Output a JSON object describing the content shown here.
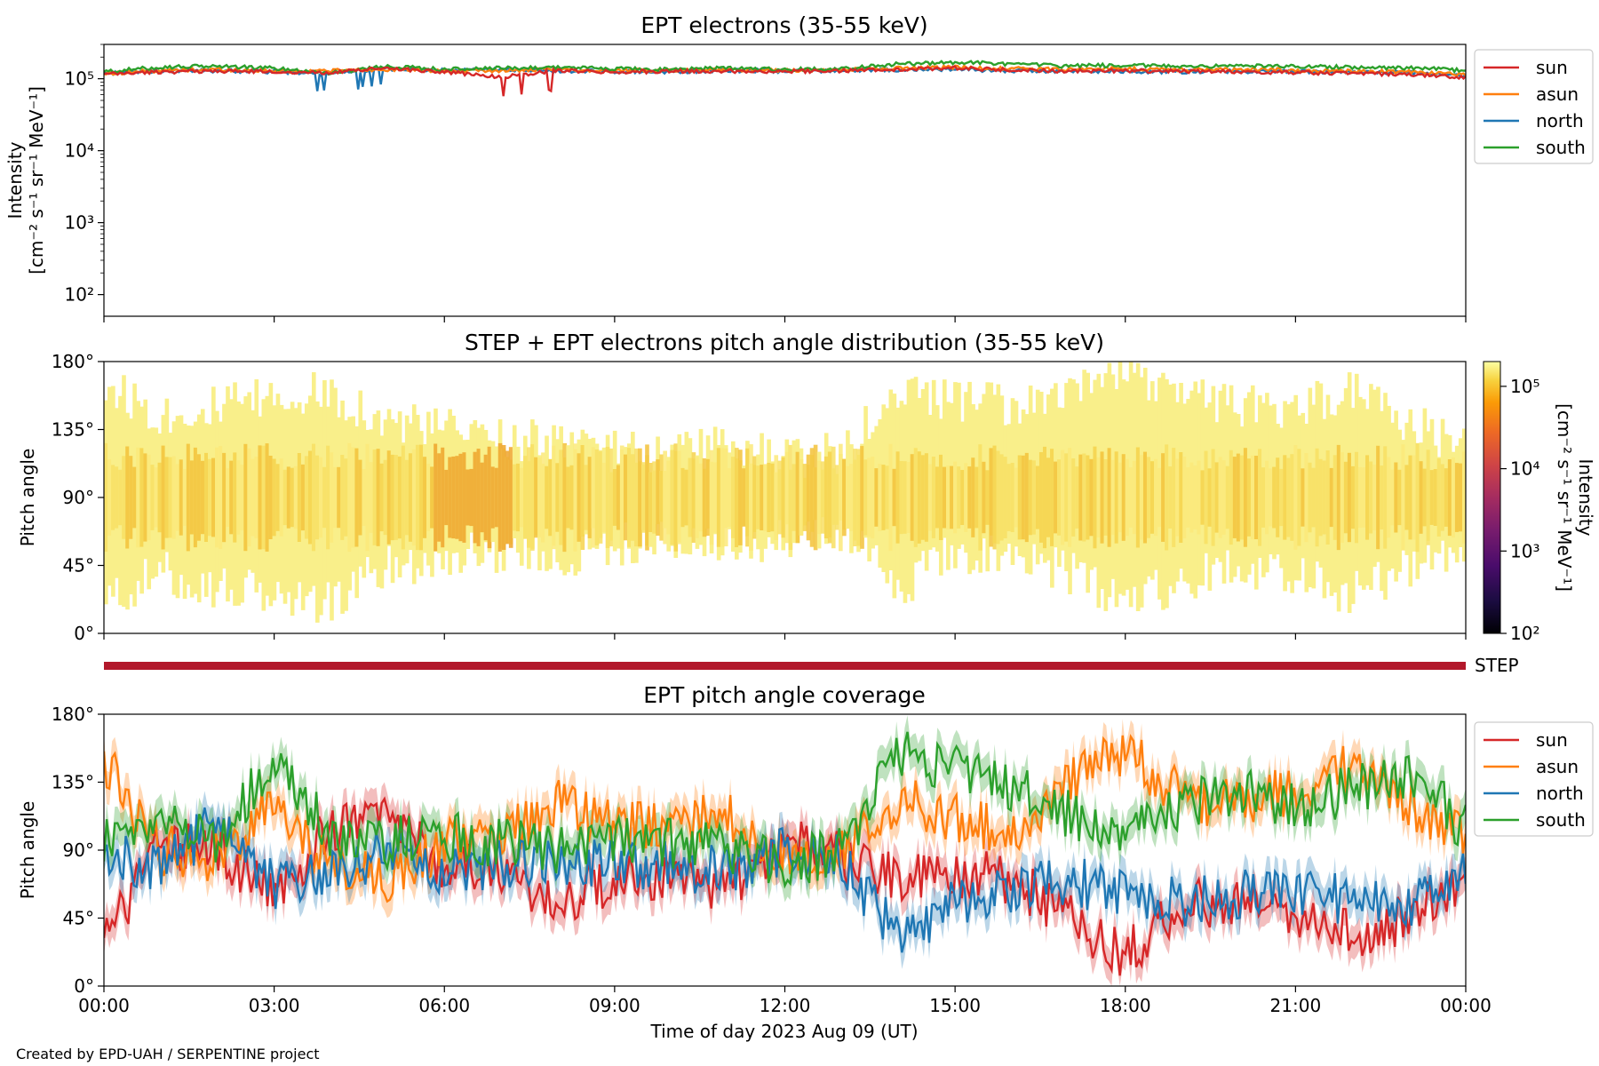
{
  "figure": {
    "credit": "Created by EPD-UAH / SERPENTINE project"
  },
  "colors": {
    "sun": "#d62728",
    "asun": "#ff7f0e",
    "north": "#1f77b4",
    "south": "#2ca02c",
    "step_bar": "#b2182b"
  },
  "chart_data": [
    {
      "type": "line",
      "title": "EPT electrons (35-55 keV)",
      "ylabel_line1": "Intensity",
      "ylabel_line2": "[cm⁻² s⁻¹ sr⁻¹ MeV⁻¹]",
      "yscale": "log",
      "ylim": [
        50,
        300000
      ],
      "yticks": [
        100,
        1000,
        10000,
        100000
      ],
      "ytick_labels": [
        "10²",
        "10³",
        "10⁴",
        "10⁵"
      ],
      "xlim": [
        "2023-08-09 00:00",
        "2023-08-10 00:00"
      ],
      "legend_placement": "outside-right-top",
      "series": [
        {
          "name": "sun",
          "x_hours": [
            0,
            1,
            2,
            3,
            4,
            5,
            6,
            7,
            8,
            9,
            10,
            11,
            12,
            13,
            14,
            15,
            16,
            17,
            18,
            19,
            20,
            21,
            22,
            23,
            24
          ],
          "values": [
            115000,
            125000,
            128000,
            125000,
            122000,
            140000,
            125000,
            105000,
            130000,
            125000,
            127000,
            128000,
            127000,
            130000,
            135000,
            140000,
            133000,
            128000,
            130000,
            128000,
            125000,
            122000,
            118000,
            115000,
            105000
          ]
        },
        {
          "name": "asun",
          "x_hours": [
            0,
            1,
            2,
            3,
            4,
            5,
            6,
            7,
            8,
            9,
            10,
            11,
            12,
            13,
            14,
            15,
            16,
            17,
            18,
            19,
            20,
            21,
            22,
            23,
            24
          ],
          "values": [
            118000,
            130000,
            135000,
            128000,
            130000,
            135000,
            128000,
            130000,
            133000,
            130000,
            132000,
            135000,
            130000,
            133000,
            140000,
            145000,
            138000,
            135000,
            138000,
            133000,
            135000,
            132000,
            128000,
            125000,
            115000
          ]
        },
        {
          "name": "north",
          "x_hours": [
            0,
            1,
            2,
            3,
            4,
            5,
            6,
            7,
            8,
            9,
            10,
            11,
            12,
            13,
            14,
            15,
            16,
            17,
            18,
            19,
            20,
            21,
            22,
            23,
            24
          ],
          "values": [
            120000,
            128000,
            130000,
            125000,
            115000,
            138000,
            130000,
            135000,
            128000,
            127000,
            125000,
            130000,
            128000,
            130000,
            132000,
            135000,
            130000,
            128000,
            127000,
            125000,
            127000,
            126000,
            124000,
            122000,
            112000
          ]
        },
        {
          "name": "south",
          "x_hours": [
            0,
            1,
            2,
            3,
            4,
            5,
            6,
            7,
            8,
            9,
            10,
            11,
            12,
            13,
            14,
            15,
            16,
            17,
            18,
            19,
            20,
            21,
            22,
            23,
            24
          ],
          "values": [
            125000,
            145000,
            150000,
            140000,
            120000,
            150000,
            135000,
            140000,
            145000,
            138000,
            135000,
            140000,
            135000,
            138000,
            160000,
            170000,
            160000,
            150000,
            155000,
            148000,
            150000,
            148000,
            145000,
            142000,
            130000
          ]
        }
      ]
    },
    {
      "type": "heatmap",
      "title": "STEP + EPT electrons pitch angle distribution (35-55 keV)",
      "ylabel": "Pitch angle",
      "ylim": [
        0,
        180
      ],
      "yticks": [
        0,
        45,
        90,
        135,
        180
      ],
      "ytick_labels": [
        "0°",
        "45°",
        "90°",
        "135°",
        "180°"
      ],
      "xlim": [
        "2023-08-09 00:00",
        "2023-08-10 00:00"
      ],
      "colorbar": {
        "scale": "log",
        "range": [
          100,
          200000
        ],
        "ticks": [
          100,
          1000,
          10000,
          100000
        ],
        "tick_labels": [
          "10²",
          "10³",
          "10⁴",
          "10⁵"
        ],
        "label_line1": "Intensity",
        "label_line2": "[cm⁻² s⁻¹ sr⁻¹ MeV⁻¹]",
        "colormap": "inferno"
      },
      "coverage_band": {
        "x_hours": [
          0,
          1,
          2,
          3,
          4,
          5,
          6,
          7,
          8,
          9,
          10,
          11,
          12,
          13,
          14,
          15,
          16,
          17,
          18,
          19,
          20,
          21,
          22,
          23,
          24
        ],
        "lower_deg": [
          20,
          40,
          30,
          25,
          20,
          45,
          50,
          55,
          50,
          60,
          60,
          55,
          65,
          70,
          30,
          55,
          50,
          40,
          20,
          35,
          45,
          40,
          25,
          45,
          60
        ],
        "upper_deg": [
          165,
          145,
          150,
          155,
          160,
          140,
          135,
          130,
          125,
          120,
          120,
          125,
          115,
          120,
          160,
          155,
          150,
          155,
          175,
          160,
          150,
          150,
          160,
          140,
          120
        ]
      },
      "intensity_note_levels": [
        80000,
        100000,
        120000,
        150000
      ]
    },
    {
      "type": "line",
      "title": "",
      "bar_label": "STEP",
      "ylabel": "",
      "ylim": [
        0,
        1
      ]
    },
    {
      "type": "line",
      "title": "EPT pitch angle coverage",
      "ylabel": "Pitch angle",
      "xlabel": "Time of day 2023 Aug 09 (UT)",
      "ylim": [
        0,
        180
      ],
      "yticks": [
        0,
        45,
        90,
        135,
        180
      ],
      "ytick_labels": [
        "0°",
        "45°",
        "90°",
        "135°",
        "180°"
      ],
      "xticks_hours": [
        0,
        3,
        6,
        9,
        12,
        15,
        18,
        21,
        24
      ],
      "xtick_labels": [
        "00:00",
        "03:00",
        "06:00",
        "09:00",
        "12:00",
        "15:00",
        "18:00",
        "21:00",
        "00:00"
      ],
      "xlim": [
        "2023-08-09 00:00",
        "2023-08-10 00:00"
      ],
      "legend_placement": "outside-right-top",
      "band_halfwidth_deg": 11,
      "series": [
        {
          "name": "sun",
          "x_hours": [
            0,
            1,
            2,
            3,
            4,
            5,
            6,
            7,
            8,
            9,
            10,
            11,
            12,
            13,
            14,
            15,
            16,
            17,
            18,
            19,
            20,
            21,
            22,
            23,
            24
          ],
          "values": [
            30,
            95,
            90,
            60,
            105,
            110,
            80,
            75,
            55,
            70,
            75,
            65,
            95,
            85,
            70,
            75,
            70,
            45,
            20,
            55,
            55,
            50,
            35,
            45,
            75
          ]
        },
        {
          "name": "asun",
          "x_hours": [
            0,
            1,
            2,
            3,
            4,
            5,
            6,
            7,
            8,
            9,
            10,
            11,
            12,
            13,
            14,
            15,
            16,
            17,
            18,
            19,
            20,
            21,
            22,
            23,
            24
          ],
          "values": [
            150,
            90,
            85,
            120,
            80,
            70,
            95,
            100,
            120,
            105,
            105,
            115,
            85,
            90,
            125,
            110,
            100,
            135,
            155,
            125,
            120,
            130,
            145,
            120,
            100
          ]
        },
        {
          "name": "north",
          "x_hours": [
            0,
            1,
            2,
            3,
            4,
            5,
            6,
            7,
            8,
            9,
            10,
            11,
            12,
            13,
            14,
            15,
            16,
            17,
            18,
            19,
            20,
            21,
            22,
            23,
            24
          ],
          "values": [
            90,
            75,
            110,
            65,
            75,
            90,
            75,
            80,
            85,
            80,
            80,
            75,
            90,
            85,
            30,
            55,
            65,
            70,
            60,
            55,
            60,
            65,
            55,
            50,
            80
          ]
        },
        {
          "name": "south",
          "x_hours": [
            0,
            1,
            2,
            3,
            4,
            5,
            6,
            7,
            8,
            9,
            10,
            11,
            12,
            13,
            14,
            15,
            16,
            17,
            18,
            19,
            20,
            21,
            22,
            23,
            24
          ],
          "values": [
            95,
            110,
            95,
            150,
            100,
            95,
            100,
            95,
            90,
            95,
            95,
            90,
            80,
            90,
            155,
            145,
            130,
            115,
            100,
            120,
            130,
            120,
            130,
            140,
            105
          ]
        }
      ]
    }
  ]
}
